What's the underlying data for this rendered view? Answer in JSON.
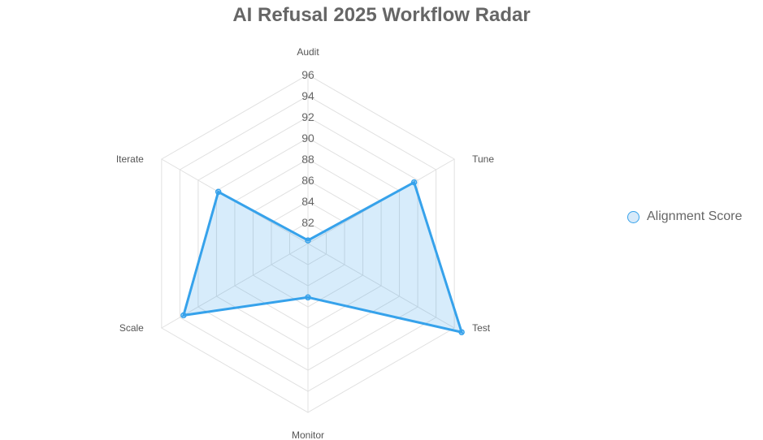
{
  "chart_data": {
    "type": "radar",
    "title": "AI Refusal 2025 Workflow Radar",
    "categories": [
      "Audit",
      "Tune",
      "Test",
      "Monitor",
      "Scale",
      "Iterate"
    ],
    "series": [
      {
        "name": "Alignment Score",
        "values": [
          80.3,
          91.6,
          96.8,
          85.1,
          93.6,
          89.8
        ]
      }
    ],
    "r_min": 80,
    "r_max": 96,
    "ticks": [
      82,
      84,
      86,
      88,
      90,
      92,
      94,
      96
    ],
    "grid": true,
    "legend_position": "right",
    "colors": {
      "line": "#36a2eb",
      "fill": "rgba(54,162,235,0.2)",
      "grid": "#e0e0e0"
    }
  }
}
